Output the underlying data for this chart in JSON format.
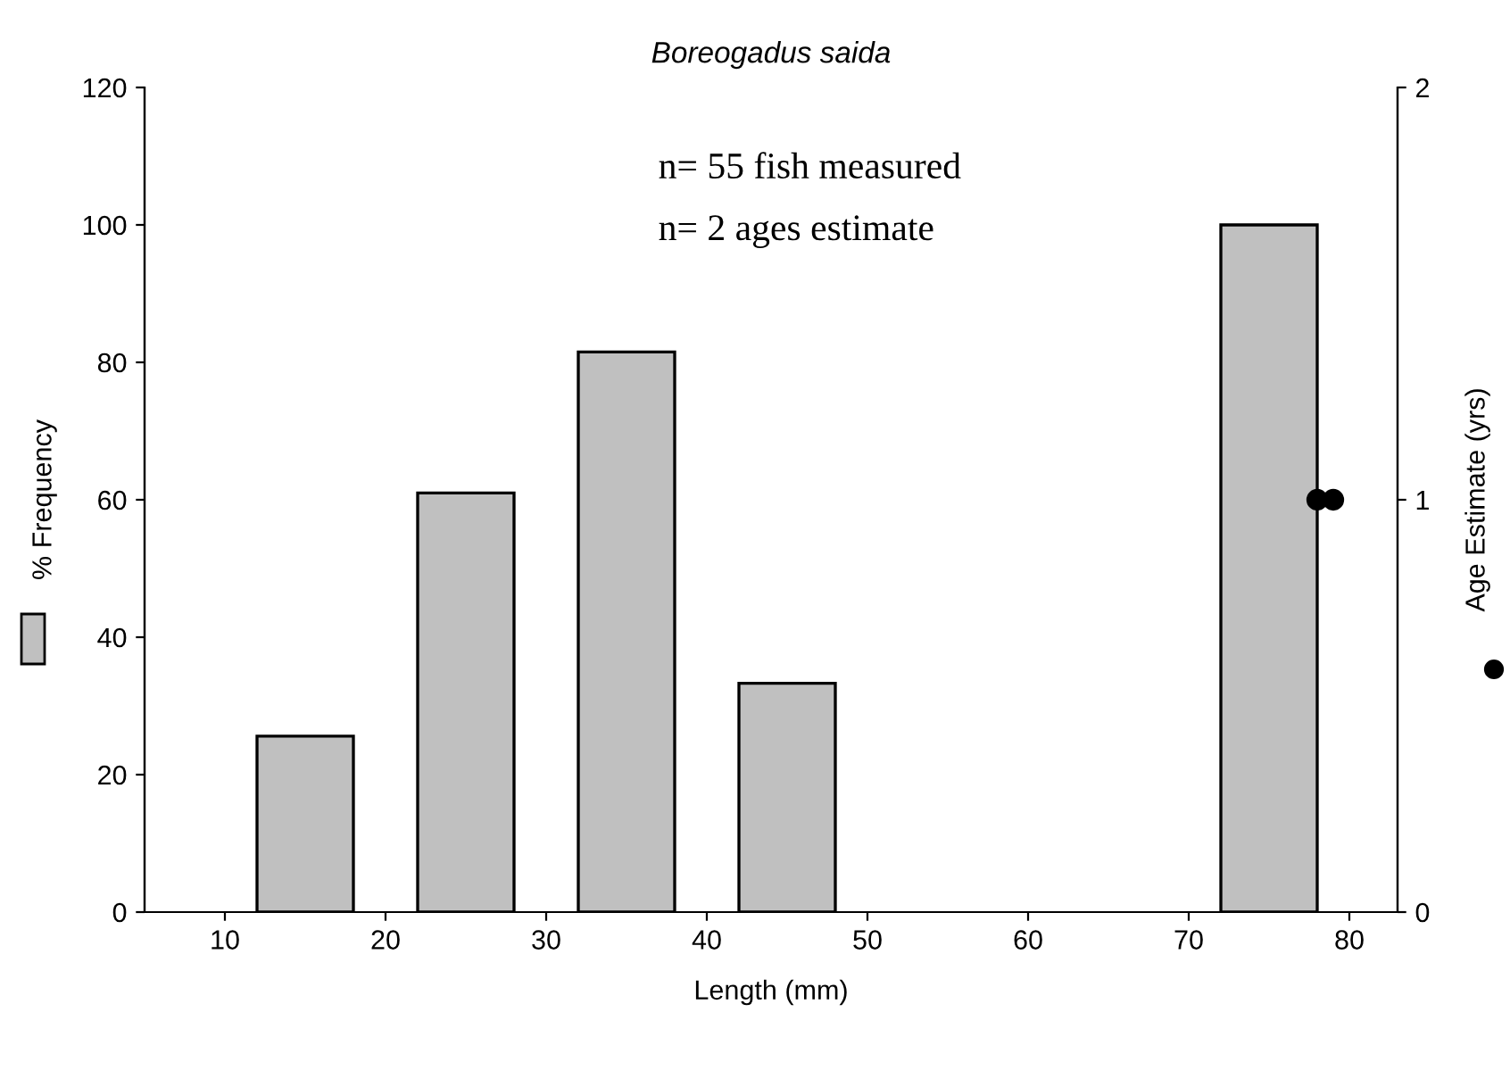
{
  "chart_data": {
    "type": "bar",
    "title": "Boreogadus saida",
    "xlabel": "Length (mm)",
    "ylabel": "% Frequency",
    "y2label": "Age Estimate (yrs)",
    "annotations": [
      "n= 55 fish measured",
      "n= 2 ages estimate"
    ],
    "series": [
      {
        "x": [
          15,
          25,
          35,
          45,
          75
        ],
        "values": [
          25.6,
          61,
          81.5,
          33.3,
          100
        ],
        "color": "#c0c0c0"
      },
      {
        "type": "scatter",
        "axis": "y2",
        "x": [
          78,
          79
        ],
        "values": [
          1,
          1
        ],
        "color": "#000000",
        "marker": "circle"
      }
    ],
    "xlim": [
      5,
      83
    ],
    "xticks": [
      10,
      20,
      30,
      40,
      50,
      60,
      70,
      80
    ],
    "ylim": [
      0,
      120
    ],
    "yticks": [
      0,
      20,
      40,
      60,
      80,
      100,
      120
    ],
    "y2lim": [
      0,
      2
    ],
    "y2ticks": [
      0,
      1,
      2
    ],
    "grid": false,
    "legend": false
  }
}
